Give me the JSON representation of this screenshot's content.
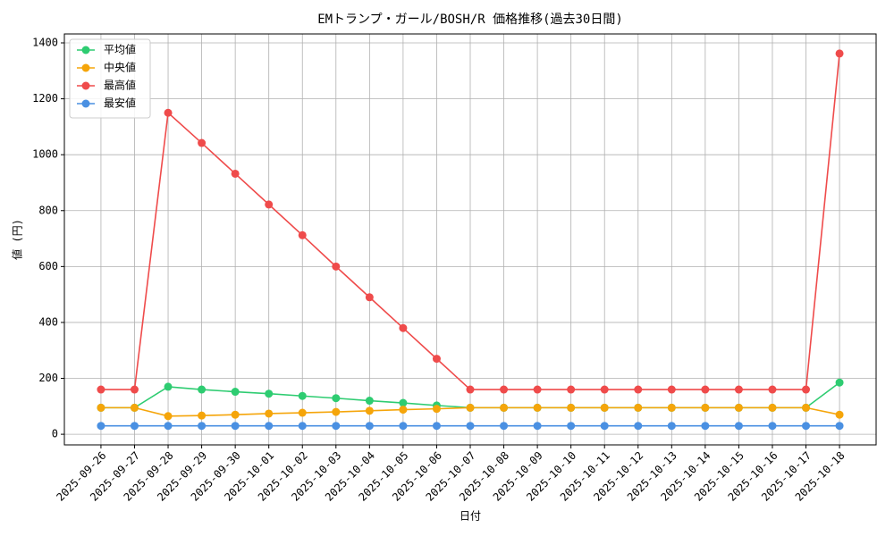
{
  "chart_data": {
    "type": "line",
    "title": "EMトランプ・ガール/BOSH/R 価格推移(過去30日間)",
    "x_label": "日付",
    "y_label": "値 (円)",
    "categories": [
      "2025-09-26",
      "2025-09-27",
      "2025-09-28",
      "2025-09-29",
      "2025-09-30",
      "2025-10-01",
      "2025-10-02",
      "2025-10-03",
      "2025-10-04",
      "2025-10-05",
      "2025-10-06",
      "2025-10-07",
      "2025-10-08",
      "2025-10-09",
      "2025-10-10",
      "2025-10-11",
      "2025-10-12",
      "2025-10-13",
      "2025-10-14",
      "2025-10-15",
      "2025-10-16",
      "2025-10-17",
      "2025-10-18"
    ],
    "series": [
      {
        "name": "平均値",
        "color": "#2ecc71",
        "values": [
          95,
          95,
          170,
          160,
          152,
          145,
          137,
          129,
          120,
          112,
          103,
          95,
          95,
          95,
          95,
          95,
          95,
          95,
          95,
          95,
          95,
          95,
          185
        ]
      },
      {
        "name": "中央値",
        "color": "#f5a50a",
        "values": [
          95,
          95,
          65,
          67,
          70,
          74,
          77,
          80,
          84,
          88,
          91,
          95,
          95,
          95,
          95,
          95,
          95,
          95,
          95,
          95,
          95,
          95,
          70
        ]
      },
      {
        "name": "最高値",
        "color": "#ef4b4b",
        "values": [
          160,
          160,
          1150,
          1042,
          932,
          822,
          712,
          600,
          490,
          380,
          270,
          160,
          160,
          160,
          160,
          160,
          160,
          160,
          160,
          160,
          160,
          160,
          1362
        ]
      },
      {
        "name": "最安値",
        "color": "#4a90e2",
        "values": [
          30,
          30,
          30,
          30,
          30,
          30,
          30,
          30,
          30,
          30,
          30,
          30,
          30,
          30,
          30,
          30,
          30,
          30,
          30,
          30,
          30,
          30,
          30
        ]
      }
    ],
    "ylim": [
      -38,
      1432
    ],
    "yticks": [
      0,
      200,
      400,
      600,
      800,
      1000,
      1200,
      1400
    ],
    "grid": true,
    "legend": "upper-left"
  }
}
